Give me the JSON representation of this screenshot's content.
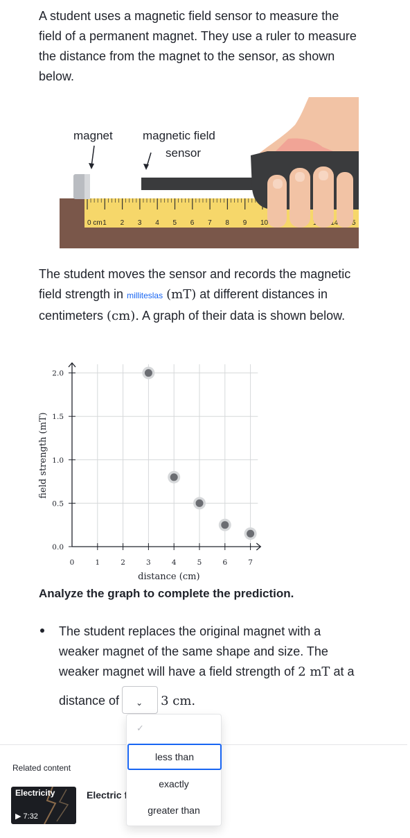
{
  "intro": {
    "line1": "A student uses a magnetic field sensor to measure the",
    "line2": "field of a permanent magnet. They use a ruler to measure",
    "line3": "the distance from the magnet to the sensor, as shown",
    "line4": "below."
  },
  "illustration": {
    "magnet_label": "magnet",
    "sensor_label_1": "magnetic field",
    "sensor_label_2": "sensor",
    "ruler_unit": "0 cm",
    "ruler_numbers": [
      "1",
      "2",
      "3",
      "4",
      "5",
      "6",
      "7",
      "8",
      "9",
      "10",
      "1",
      "14",
      "15"
    ],
    "colors": {
      "table": "#7a574a",
      "ruler": "#f6d76a",
      "hand": "#f2c3a5",
      "sensor": "#3a3b3d"
    }
  },
  "description": {
    "line1": "The student moves the sensor and records the magnetic",
    "line2_a": "field strength in ",
    "line2_link": "milliteslas",
    "line2_math": "(mT)",
    "line2_b": " at different distances in",
    "line3_a": "centimeters ",
    "line3_math": "(cm).",
    "line3_b": " A graph of their data is shown below."
  },
  "chart_data": {
    "type": "scatter",
    "title": "",
    "xlabel": "distance (cm)",
    "ylabel": "field strength (mT)",
    "xlim": [
      0,
      7.4
    ],
    "ylim": [
      0,
      2.1
    ],
    "xticks": [
      0,
      1,
      2,
      3,
      4,
      5,
      6,
      7
    ],
    "yticks": [
      0.0,
      0.5,
      1.0,
      1.5,
      2.0
    ],
    "x_tick_labels": [
      "0",
      "1",
      "2",
      "3",
      "4",
      "5",
      "6",
      "7"
    ],
    "y_tick_labels": [
      "0.0",
      "0.5",
      "1.0",
      "1.5",
      "2.0"
    ],
    "grid": true,
    "points": [
      {
        "x": 3,
        "y": 2.0
      },
      {
        "x": 4,
        "y": 0.8
      },
      {
        "x": 5,
        "y": 0.5
      },
      {
        "x": 6,
        "y": 0.25
      },
      {
        "x": 7,
        "y": 0.15
      }
    ]
  },
  "heading": "Analyze the graph to complete the prediction.",
  "bullet": {
    "line1": "The student replaces the original magnet with a",
    "line2": "weaker magnet of the same shape and size. The",
    "line3_a": "weaker magnet will have a field strength of ",
    "line3_math": "2 mT",
    "line3_b": " at a",
    "line4_a": "distance of",
    "line4_math": "3 cm."
  },
  "dropdown": {
    "chevron_icon": "chevron-down-icon",
    "check_icon": "check-icon",
    "options": [
      "less than",
      "exactly",
      "greater than"
    ],
    "focused_option": "less than"
  },
  "related": {
    "label": "Related content",
    "video_title": "Electricity",
    "video_duration": "7:32",
    "item_title": "Electric f"
  }
}
